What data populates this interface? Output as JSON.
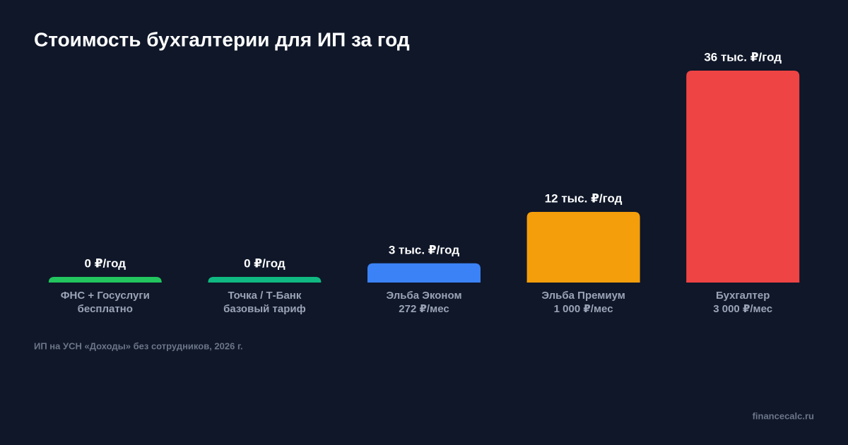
{
  "chart_data": {
    "type": "bar",
    "title": "Стоимость бухгалтерии для ИП за год",
    "categories": [
      "ФНС + Госуслуги",
      "Точка / Т-Банк",
      "Эльба Эконом",
      "Эльба Премиум",
      "Бухгалтер"
    ],
    "sublabels": [
      "бесплатно",
      "базовый тариф",
      "272 ₽/мес",
      "1 000 ₽/мес",
      "3 000 ₽/мес"
    ],
    "values": [
      0,
      0,
      3264,
      12000,
      36000
    ],
    "value_labels": [
      "0 ₽/год",
      "0 ₽/год",
      "3 тыс. ₽/год",
      "12 тыс. ₽/год",
      "36 тыс. ₽/год"
    ],
    "colors": [
      "#22c55e",
      "#10b981",
      "#3b82f6",
      "#f59e0b",
      "#ef4444"
    ],
    "note": "ИП на УСН «Доходы» без сотрудников, 2026 г.",
    "source": "financecalc.ru"
  }
}
